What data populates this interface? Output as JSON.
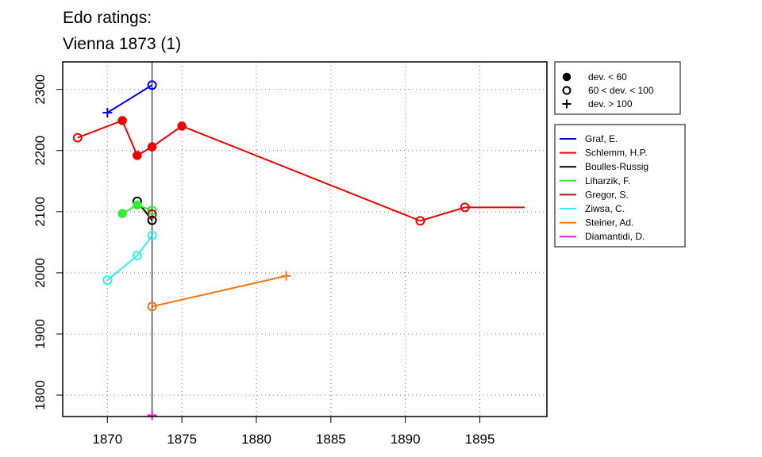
{
  "chart_data": {
    "type": "line",
    "title": "Edo ratings:",
    "subtitle": "Vienna 1873 (1)",
    "xlim": [
      1867,
      1899.5
    ],
    "ylim": [
      1765,
      2345
    ],
    "x_ticks": [
      1870,
      1875,
      1880,
      1885,
      1890,
      1895
    ],
    "y_ticks": [
      1800,
      1900,
      2000,
      2100,
      2200,
      2300
    ],
    "x_tick_labels": [
      "1870",
      "1875",
      "1880",
      "1885",
      "1890",
      "1895"
    ],
    "y_tick_labels": [
      "1800",
      "1900",
      "2000",
      "2100",
      "2200",
      "2300"
    ],
    "grid": "dotted",
    "reference_line_x": 1873,
    "marker_legend": [
      {
        "marker": "filled",
        "label": "dev. < 60"
      },
      {
        "marker": "open",
        "label": "60 < dev. < 100"
      },
      {
        "marker": "plus",
        "label": "dev. > 100"
      }
    ],
    "series": [
      {
        "name": "Graf, E.",
        "color": "#0000ee",
        "points": [
          {
            "x": 1870,
            "y": 2262,
            "m": "plus"
          },
          {
            "x": 1873,
            "y": 2307,
            "m": "open"
          }
        ]
      },
      {
        "name": "Schlemm, H.P.",
        "color": "#ee0000",
        "points": [
          {
            "x": 1868,
            "y": 2221,
            "m": "open"
          },
          {
            "x": 1871,
            "y": 2249,
            "m": "filled"
          },
          {
            "x": 1872,
            "y": 2192,
            "m": "filled"
          },
          {
            "x": 1873,
            "y": 2206,
            "m": "filled"
          },
          {
            "x": 1875,
            "y": 2240,
            "m": "filled"
          },
          {
            "x": 1891,
            "y": 2085,
            "m": "open"
          },
          {
            "x": 1894,
            "y": 2107,
            "m": "open"
          }
        ],
        "extend_to": 1898
      },
      {
        "name": "Boulles-Russig",
        "color": "#000000",
        "points": [
          {
            "x": 1872,
            "y": 2117,
            "m": "open"
          },
          {
            "x": 1873,
            "y": 2086,
            "m": "open"
          }
        ]
      },
      {
        "name": "Liharzik, F.",
        "color": "#33ee33",
        "points": [
          {
            "x": 1871,
            "y": 2097,
            "m": "filled"
          },
          {
            "x": 1872,
            "y": 2111,
            "m": "filled"
          },
          {
            "x": 1873,
            "y": 2102,
            "m": "open"
          }
        ]
      },
      {
        "name": "Gregor, S.",
        "color": "#a01818",
        "points": [
          {
            "x": 1873,
            "y": 2096,
            "m": "open"
          }
        ]
      },
      {
        "name": "Ziwsa, C.",
        "color": "#33eeee",
        "points": [
          {
            "x": 1870,
            "y": 1988,
            "m": "open"
          },
          {
            "x": 1872,
            "y": 2028,
            "m": "open"
          },
          {
            "x": 1873,
            "y": 2061,
            "m": "open"
          }
        ]
      },
      {
        "name": "Steiner, Ad.",
        "color": "#f07818",
        "points": [
          {
            "x": 1873,
            "y": 1945,
            "m": "open"
          },
          {
            "x": 1882,
            "y": 1995,
            "m": "plus"
          }
        ]
      },
      {
        "name": "Diamantidi, D.",
        "color": "#ee11dd",
        "points": [
          {
            "x": 1873,
            "y": 1767,
            "m": "plus"
          }
        ]
      }
    ]
  }
}
